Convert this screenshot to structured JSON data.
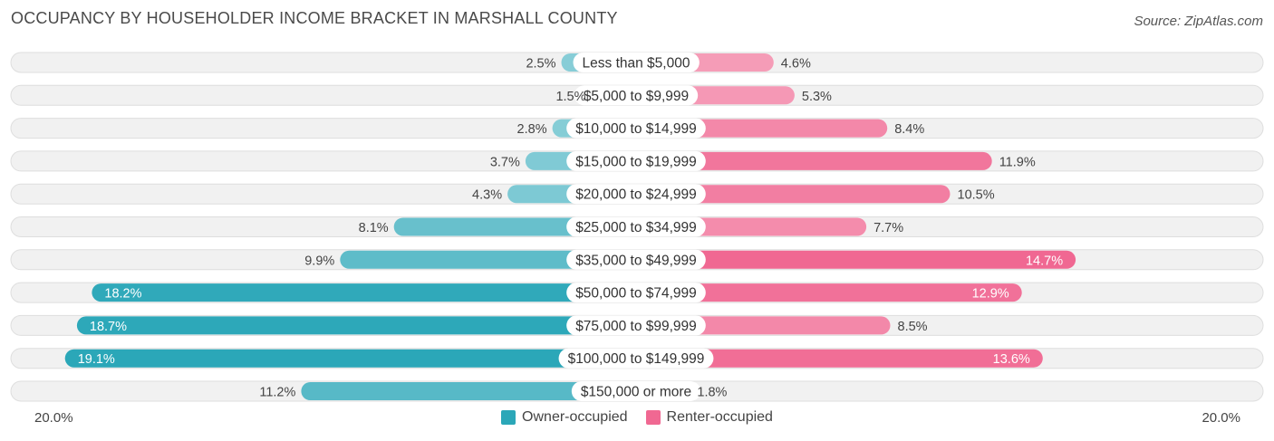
{
  "title": "OCCUPANCY BY HOUSEHOLDER INCOME BRACKET IN MARSHALL COUNTY",
  "source": "Source: ZipAtlas.com",
  "axis": {
    "left_label": "20.0%",
    "right_label": "20.0%"
  },
  "legend": {
    "owner_label": "Owner-occupied",
    "renter_label": "Renter-occupied",
    "owner_color": "#2ba7b8",
    "renter_color": "#f06892"
  },
  "chart_data": {
    "type": "bar",
    "orientation": "diverging-horizontal",
    "title": "OCCUPANCY BY HOUSEHOLDER INCOME BRACKET IN MARSHALL COUNTY",
    "max_value": 20.0,
    "categories": [
      "Less than $5,000",
      "$5,000 to $9,999",
      "$10,000 to $14,999",
      "$15,000 to $19,999",
      "$20,000 to $24,999",
      "$25,000 to $34,999",
      "$35,000 to $49,999",
      "$50,000 to $74,999",
      "$75,000 to $99,999",
      "$100,000 to $149,999",
      "$150,000 or more"
    ],
    "series": [
      {
        "name": "Owner-occupied",
        "values": [
          2.5,
          1.5,
          2.8,
          3.7,
          4.3,
          8.1,
          9.9,
          18.2,
          18.7,
          19.1,
          11.2
        ],
        "labels": [
          "2.5%",
          "1.5%",
          "2.8%",
          "3.7%",
          "4.3%",
          "8.1%",
          "9.9%",
          "18.2%",
          "18.7%",
          "19.1%",
          "11.2%"
        ]
      },
      {
        "name": "Renter-occupied",
        "values": [
          4.6,
          5.3,
          8.4,
          11.9,
          10.5,
          7.7,
          14.7,
          12.9,
          8.5,
          13.6,
          1.8
        ],
        "labels": [
          "4.6%",
          "5.3%",
          "8.4%",
          "11.9%",
          "10.5%",
          "7.7%",
          "14.7%",
          "12.9%",
          "8.5%",
          "13.6%",
          "1.8%"
        ]
      }
    ]
  }
}
